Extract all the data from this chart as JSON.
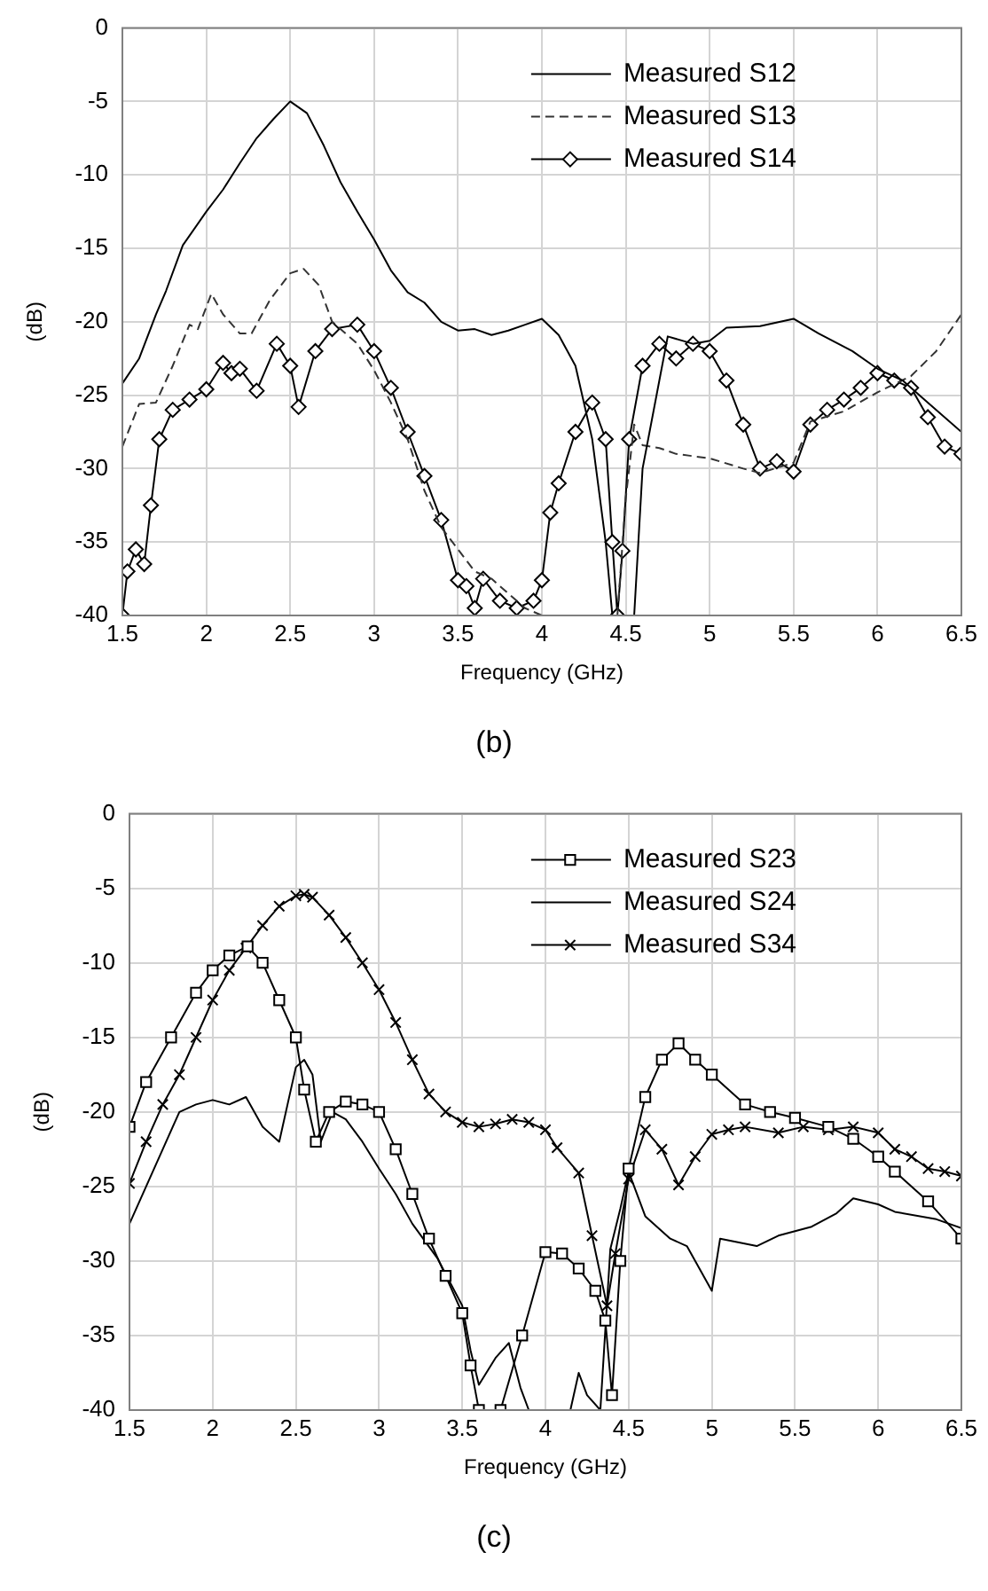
{
  "chart_data": [
    {
      "type": "line",
      "xlabel": "Frequency (GHz)",
      "ylabel": "(dB)",
      "xlim": [
        1.5,
        6.5
      ],
      "xticks": [
        1.5,
        2,
        2.5,
        3,
        3.5,
        4,
        4.5,
        5,
        5.5,
        6,
        6.5
      ],
      "ylim": [
        -40,
        0
      ],
      "yticks": [
        -40,
        -35,
        -30,
        -25,
        -20,
        -15,
        -10,
        -5,
        0
      ],
      "grid": true,
      "legend": "top right",
      "annotations": [
        "(b)"
      ],
      "series": [
        {
          "name": "Measured S12",
          "color": "#000000",
          "line_style": "solid",
          "marker": "none",
          "x": [
            1.5,
            1.6,
            1.7,
            1.76,
            1.86,
            2.0,
            2.1,
            2.2,
            2.3,
            2.4,
            2.5,
            2.6,
            2.7,
            2.8,
            2.9,
            3.0,
            3.1,
            3.2,
            3.3,
            3.4,
            3.5,
            3.6,
            3.7,
            3.8,
            3.9,
            4.0,
            4.1,
            4.2,
            4.3,
            4.38,
            4.42,
            4.55,
            4.6,
            4.7,
            4.75,
            4.9,
            5.0,
            5.1,
            5.3,
            5.5,
            5.65,
            5.85,
            6.0,
            6.15,
            6.3,
            6.5
          ],
          "values": [
            -24.2,
            -22.5,
            -19.5,
            -17.9,
            -14.8,
            -12.5,
            -11,
            -9.2,
            -7.5,
            -6.2,
            -5,
            -5.8,
            -8,
            -10.5,
            -12.5,
            -14.4,
            -16.5,
            -18,
            -18.7,
            -20,
            -20.6,
            -20.5,
            -20.9,
            -20.6,
            -20.2,
            -19.8,
            -20.9,
            -23,
            -28,
            -35,
            -40,
            -40,
            -30,
            -24,
            -21,
            -21.5,
            -21.3,
            -20.4,
            -20.3,
            -19.8,
            -20.8,
            -22,
            -23.2,
            -24,
            -25.5,
            -27.5
          ]
        },
        {
          "name": "Measured S13",
          "color": "#333333",
          "line_style": "dashed",
          "marker": "none",
          "x": [
            1.5,
            1.6,
            1.7,
            1.8,
            1.9,
            1.95,
            2.03,
            2.1,
            2.2,
            2.27,
            2.38,
            2.5,
            2.58,
            2.67,
            2.75,
            2.9,
            3.0,
            3.1,
            3.2,
            3.3,
            3.4,
            3.5,
            3.6,
            3.7,
            3.8,
            3.9,
            4.0,
            4.2,
            4.45,
            4.5,
            4.55,
            4.6,
            4.7,
            4.8,
            5.0,
            5.2,
            5.3,
            5.5,
            5.6,
            5.8,
            6.0,
            6.2,
            6.35,
            6.5
          ],
          "values": [
            -28.5,
            -25.6,
            -25.5,
            -23,
            -20.2,
            -20.5,
            -18.1,
            -19.5,
            -20.8,
            -20.8,
            -18.5,
            -16.7,
            -16.4,
            -17.5,
            -20,
            -21.5,
            -23.3,
            -25.5,
            -28,
            -31.5,
            -34,
            -35.5,
            -37,
            -37.5,
            -38.5,
            -39.5,
            -40,
            null,
            -40,
            -32,
            -27,
            -28.4,
            -28.6,
            -29,
            -29.3,
            -30,
            -30.3,
            -29.6,
            -26.8,
            -26.1,
            -24.8,
            -23.7,
            -22,
            -19.5
          ]
        },
        {
          "name": "Measured S14",
          "color": "#000000",
          "line_style": "solid",
          "marker": "diamond",
          "x": [
            1.5,
            1.53,
            1.58,
            1.63,
            1.67,
            1.72,
            1.8,
            1.9,
            2.0,
            2.1,
            2.15,
            2.2,
            2.3,
            2.42,
            2.5,
            2.55,
            2.65,
            2.75,
            2.9,
            3.0,
            3.1,
            3.2,
            3.3,
            3.4,
            3.5,
            3.55,
            3.6,
            3.65,
            3.75,
            3.85,
            3.95,
            4.0,
            4.05,
            4.1,
            4.2,
            4.3,
            4.38,
            4.42,
            4.45,
            4.48,
            4.52,
            4.6,
            4.7,
            4.8,
            4.9,
            5.0,
            5.1,
            5.2,
            5.3,
            5.4,
            5.5,
            5.6,
            5.7,
            5.8,
            5.9,
            6.0,
            6.1,
            6.2,
            6.3,
            6.4,
            6.5
          ],
          "values": [
            -40,
            -37,
            -35.5,
            -36.5,
            -32.5,
            -28,
            -26,
            -25.3,
            -24.6,
            -22.8,
            -23.5,
            -23.2,
            -24.7,
            -21.5,
            -23,
            -25.8,
            -22,
            -20.5,
            -20.2,
            -22,
            -24.5,
            -27.5,
            -30.5,
            -33.5,
            -37.6,
            -38,
            -39.5,
            -37.5,
            -39,
            -39.5,
            -39,
            -37.6,
            -33,
            -31,
            -27.5,
            -25.5,
            -28,
            -35,
            -40,
            -35.6,
            -28,
            -23,
            -21.5,
            -22.5,
            -21.5,
            -22,
            -24,
            -27,
            -30,
            -29.5,
            -30.2,
            -27,
            -26,
            -25.3,
            -24.5,
            -23.5,
            -24,
            -24.5,
            -26.5,
            -28.5,
            -29
          ]
        }
      ]
    },
    {
      "type": "line",
      "xlabel": "Frequency (GHz)",
      "ylabel": "(dB)",
      "xlim": [
        1.5,
        6.5
      ],
      "xticks": [
        1.5,
        2,
        2.5,
        3,
        3.5,
        4,
        4.5,
        5,
        5.5,
        6,
        6.5
      ],
      "ylim": [
        -40,
        0
      ],
      "yticks": [
        -40,
        -35,
        -30,
        -25,
        -20,
        -15,
        -10,
        -5,
        0
      ],
      "grid": true,
      "legend": "top right",
      "annotations": [
        "(c)"
      ],
      "series": [
        {
          "name": "Measured S23",
          "color": "#000000",
          "line_style": "solid",
          "marker": "square",
          "x": [
            1.5,
            1.6,
            1.75,
            1.9,
            2.0,
            2.1,
            2.21,
            2.3,
            2.4,
            2.5,
            2.55,
            2.62,
            2.7,
            2.8,
            2.9,
            3.0,
            3.1,
            3.2,
            3.3,
            3.4,
            3.5,
            3.55,
            3.6,
            3.67,
            3.73,
            3.86,
            4.0,
            4.1,
            4.2,
            4.3,
            4.36,
            4.4,
            4.45,
            4.5,
            4.6,
            4.7,
            4.8,
            4.9,
            5.0,
            5.2,
            5.35,
            5.5,
            5.7,
            5.85,
            6.0,
            6.1,
            6.3,
            6.5
          ],
          "values": [
            -21,
            -18,
            -15,
            -12,
            -10.5,
            -9.5,
            -8.9,
            -10,
            -12.5,
            -15,
            -18.5,
            -22,
            -20,
            -19.3,
            -19.5,
            -20,
            -22.5,
            -25.5,
            -28.5,
            -31,
            -33.5,
            -37,
            -40,
            null,
            -40,
            -35,
            -29.4,
            -29.5,
            -30.5,
            -32,
            -34,
            -39,
            -30,
            -23.8,
            -19,
            -16.5,
            -15.4,
            -16.5,
            -17.5,
            -19.5,
            -20,
            -20.4,
            -21,
            -21.8,
            -23,
            -24,
            -26,
            -28.5
          ]
        },
        {
          "name": "Measured S24",
          "color": "#000000",
          "line_style": "solid",
          "marker": "none",
          "x": [
            1.5,
            1.6,
            1.7,
            1.8,
            1.9,
            2.0,
            2.1,
            2.2,
            2.3,
            2.4,
            2.45,
            2.5,
            2.55,
            2.6,
            2.65,
            2.72,
            2.8,
            2.9,
            3.0,
            3.1,
            3.2,
            3.35,
            3.5,
            3.55,
            3.6,
            3.7,
            3.78,
            3.85,
            3.9,
            4.0,
            4.15,
            4.2,
            4.25,
            4.33,
            4.39,
            4.45,
            4.5,
            4.6,
            4.75,
            4.85,
            5.0,
            5.05,
            5.27,
            5.4,
            5.6,
            5.75,
            5.85,
            6.0,
            6.1,
            6.35,
            6.5
          ],
          "values": [
            -27.5,
            -25,
            -22.5,
            -20,
            -19.5,
            -19.2,
            -19.5,
            -19,
            -21,
            -22,
            -19.5,
            -17,
            -16.5,
            -17.5,
            -22,
            -20,
            -20.5,
            -22,
            -23.8,
            -25.5,
            -27.5,
            -29.8,
            -33,
            -36,
            -38.3,
            -36.5,
            -35.5,
            -38.5,
            -40,
            null,
            -40,
            -37.5,
            -39,
            -40,
            -29.2,
            -26.5,
            -24,
            -27,
            -28.5,
            -29,
            -32,
            -28.5,
            -29,
            -28.3,
            -27.7,
            -26.8,
            -25.8,
            -26.2,
            -26.7,
            -27.2,
            -27.8
          ]
        },
        {
          "name": "Measured S34",
          "color": "#000000",
          "line_style": "solid",
          "marker": "cross",
          "x": [
            1.5,
            1.6,
            1.7,
            1.8,
            1.9,
            2.0,
            2.1,
            2.2,
            2.3,
            2.4,
            2.5,
            2.55,
            2.6,
            2.7,
            2.8,
            2.9,
            3.0,
            3.1,
            3.2,
            3.3,
            3.4,
            3.5,
            3.6,
            3.7,
            3.8,
            3.9,
            4.0,
            4.07,
            4.2,
            4.28,
            4.37,
            4.42,
            4.5,
            4.6,
            4.7,
            4.8,
            4.9,
            5.0,
            5.1,
            5.2,
            5.4,
            5.55,
            5.7,
            5.85,
            6.0,
            6.1,
            6.2,
            6.3,
            6.4,
            6.5
          ],
          "values": [
            -24.8,
            -22,
            -19.5,
            -17.5,
            -15,
            -12.5,
            -10.5,
            -9,
            -7.5,
            -6.2,
            -5.5,
            -5.4,
            -5.6,
            -6.8,
            -8.3,
            -10,
            -11.8,
            -14,
            -16.5,
            -18.8,
            -20,
            -20.7,
            -21,
            -20.8,
            -20.5,
            -20.7,
            -21.2,
            -22.4,
            -24.1,
            -28.3,
            -33,
            -29.5,
            -24.5,
            -21.2,
            -22.5,
            -24.9,
            -23,
            -21.5,
            -21.2,
            -21,
            -21.4,
            -21,
            -21.2,
            -21,
            -21.4,
            -22.5,
            -23,
            -23.8,
            -24,
            -24.3
          ]
        }
      ]
    }
  ]
}
